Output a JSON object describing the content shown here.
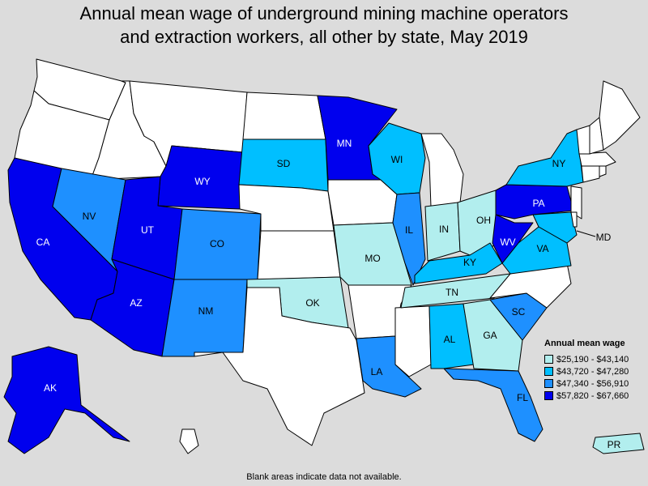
{
  "title": {
    "line1": "Annual mean wage of underground mining machine operators",
    "line2": "and extraction workers, all other by state, May 2019"
  },
  "legend": {
    "title": "Annual mean wage",
    "bins": [
      {
        "label": "$25,190 - $43,140",
        "color": "#b2eeee"
      },
      {
        "label": "$43,720 - $47,280",
        "color": "#00bfff"
      },
      {
        "label": "$47,340 - $56,910",
        "color": "#1e90ff"
      },
      {
        "label": "$57,820 - $67,660",
        "color": "#0000ee"
      }
    ],
    "no_data_color": "#ffffff"
  },
  "footnote": "Blank areas indicate data not available.",
  "states": {
    "WA": null,
    "OR": null,
    "ID": null,
    "MT": null,
    "ND": null,
    "NE": null,
    "KS": null,
    "TX": null,
    "AR": null,
    "MS": null,
    "NC": null,
    "MI": null,
    "IA": null,
    "ME": null,
    "NH": null,
    "VT": null,
    "MA": null,
    "CT": null,
    "RI": null,
    "NJ": null,
    "DE": null,
    "HI": null,
    "CA": 3,
    "WY": 3,
    "UT": 3,
    "AZ": 3,
    "AK": 3,
    "MN": 3,
    "PA": 3,
    "WV": 3,
    "NV": 2,
    "CO": 2,
    "NM": 2,
    "IL": 2,
    "LA": 2,
    "SC": 2,
    "FL": 2,
    "SD": 1,
    "WI": 1,
    "NY": 1,
    "AL": 1,
    "KY": 1,
    "VA": 1,
    "MD": 1,
    "MO": 0,
    "OK": 0,
    "TN": 0,
    "GA": 0,
    "IN": 0,
    "OH": 0,
    "PR": 0
  },
  "state_labels": [
    "CA",
    "NV",
    "UT",
    "AZ",
    "WY",
    "CO",
    "NM",
    "SD",
    "MN",
    "WI",
    "IL",
    "MO",
    "OK",
    "TN",
    "AL",
    "GA",
    "SC",
    "FL",
    "LA",
    "KY",
    "IN",
    "OH",
    "WV",
    "VA",
    "PA",
    "NY",
    "MD",
    "AK",
    "PR"
  ]
}
